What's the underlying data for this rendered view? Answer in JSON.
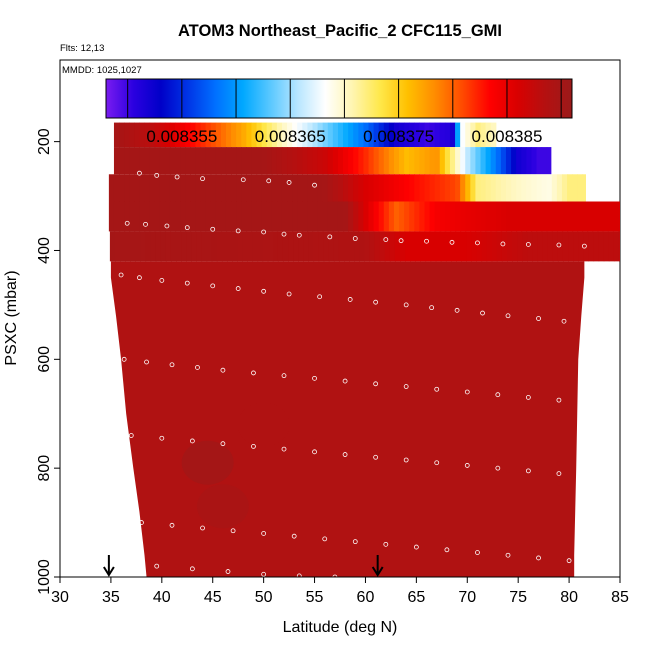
{
  "chart_data": {
    "type": "heatmap",
    "title": "ATOM3 Northeast_Pacific_2 CFC115_GMI",
    "flights_label": "Flts: 12,13",
    "dates_label": "MMDD: 1025,1027",
    "xlabel": "Latitude (deg N)",
    "ylabel": "PSXC (mbar)",
    "xlim": [
      30,
      85
    ],
    "ylim": [
      1000,
      50
    ],
    "x_ticks": [
      30,
      35,
      40,
      45,
      50,
      55,
      60,
      65,
      70,
      75,
      80,
      85
    ],
    "y_ticks": [
      200,
      400,
      600,
      800,
      1000
    ],
    "colorbar": {
      "range": [
        0.008348,
        0.008391
      ],
      "ticks": [
        0.008355,
        0.008365,
        0.008375,
        0.008385
      ],
      "tick_labels": [
        "0.008355",
        "0.008365",
        "0.008375",
        "0.008385"
      ],
      "colors": [
        "#7a1cf0",
        "#2b00e0",
        "#0000c8",
        "#0035e6",
        "#0070ff",
        "#00a8ff",
        "#5ac8ff",
        "#b8e6ff",
        "#ffffff",
        "#fff5b0",
        "#ffe84a",
        "#ffc000",
        "#ff8c00",
        "#ff4a00",
        "#ff0000",
        "#d90000",
        "#b51010",
        "#9b1a1a"
      ]
    },
    "background_value": 0.008389,
    "series": [
      {
        "name": "band-175",
        "p_top": 165,
        "p_bottom": 210,
        "x_start": 35.3,
        "x_end": 72.8,
        "gradient": [
          [
            35.3,
            0.00839
          ],
          [
            39,
            0.008388
          ],
          [
            44,
            0.008382
          ],
          [
            48,
            0.008377
          ],
          [
            52,
            0.00837
          ],
          [
            56,
            0.008364
          ],
          [
            60,
            0.008358
          ],
          [
            63,
            0.008352
          ],
          [
            66,
            0.00835
          ],
          [
            68.5,
            0.008351
          ],
          [
            69.5,
            0.008368
          ],
          [
            71,
            0.008372
          ],
          [
            72.8,
            0.00837
          ]
        ]
      },
      {
        "name": "band-228",
        "p_top": 210,
        "p_bottom": 260,
        "x_start": 35.3,
        "x_end": 78.2,
        "gradient": [
          [
            35.3,
            0.00839
          ],
          [
            50,
            0.00839
          ],
          [
            56,
            0.008387
          ],
          [
            60,
            0.008382
          ],
          [
            64,
            0.008376
          ],
          [
            67,
            0.008378
          ],
          [
            70,
            0.008366
          ],
          [
            73,
            0.008358
          ],
          [
            75,
            0.008352
          ],
          [
            77,
            0.00835
          ]
        ]
      },
      {
        "name": "band-288",
        "p_top": 260,
        "p_bottom": 310,
        "x_start": 34.8,
        "x_end": 81.6,
        "gradient": [
          [
            34.8,
            0.00839
          ],
          [
            56,
            0.00839
          ],
          [
            60,
            0.008386
          ],
          [
            65,
            0.008383
          ],
          [
            69,
            0.008381
          ],
          [
            71,
            0.008372
          ],
          [
            75,
            0.00837
          ],
          [
            78,
            0.008369
          ],
          [
            80,
            0.008372
          ]
        ]
      },
      {
        "name": "band-340",
        "p_top": 310,
        "p_bottom": 365,
        "x_start": 34.8,
        "x_end": 85.0,
        "gradient": [
          [
            34.8,
            0.00839
          ],
          [
            58,
            0.00839
          ],
          [
            61,
            0.008384
          ],
          [
            63,
            0.00838
          ],
          [
            65,
            0.008382
          ],
          [
            67,
            0.008384
          ],
          [
            70,
            0.008385
          ],
          [
            74,
            0.008386
          ],
          [
            80,
            0.008386
          ],
          [
            84,
            0.008386
          ]
        ]
      },
      {
        "name": "band-390",
        "p_top": 365,
        "p_bottom": 420,
        "x_start": 34.9,
        "x_end": 85.0,
        "gradient": [
          [
            34.9,
            0.00839
          ],
          [
            60,
            0.008389
          ],
          [
            64,
            0.008386
          ],
          [
            70,
            0.008386
          ],
          [
            76,
            0.008388
          ],
          [
            84,
            0.008388
          ]
        ]
      }
    ],
    "lower_lat_ranges": [
      {
        "p": 450,
        "x_start": 35.0,
        "x_end": 81.5
      },
      {
        "p": 520,
        "x_start": 35.5,
        "x_end": 81.2
      },
      {
        "p": 600,
        "x_start": 36.0,
        "x_end": 80.9
      },
      {
        "p": 700,
        "x_start": 36.5,
        "x_end": 80.8
      },
      {
        "p": 800,
        "x_start": 37.2,
        "x_end": 80.7
      },
      {
        "p": 880,
        "x_start": 37.8,
        "x_end": 80.6
      },
      {
        "p": 960,
        "x_start": 38.3,
        "x_end": 80.5
      },
      {
        "p": 1000,
        "x_start": 38.5,
        "x_end": 80.5
      }
    ],
    "hotspots": [
      {
        "x": 44.5,
        "p": 790,
        "value": 0.008391
      },
      {
        "x": 46,
        "p": 870,
        "value": 0.00839
      },
      {
        "x": 50,
        "p": 720,
        "value": 0.008389
      }
    ],
    "samples": [
      {
        "x": 37.8,
        "p": 258
      },
      {
        "x": 39.5,
        "p": 262
      },
      {
        "x": 41.5,
        "p": 265
      },
      {
        "x": 44.0,
        "p": 268
      },
      {
        "x": 48.0,
        "p": 270
      },
      {
        "x": 50.5,
        "p": 272
      },
      {
        "x": 52.5,
        "p": 275
      },
      {
        "x": 55.0,
        "p": 280
      },
      {
        "x": 36.6,
        "p": 350
      },
      {
        "x": 38.4,
        "p": 352
      },
      {
        "x": 40.5,
        "p": 355
      },
      {
        "x": 42.5,
        "p": 358
      },
      {
        "x": 45.0,
        "p": 361
      },
      {
        "x": 47.5,
        "p": 364
      },
      {
        "x": 50.0,
        "p": 366
      },
      {
        "x": 52.0,
        "p": 370
      },
      {
        "x": 53.5,
        "p": 372
      },
      {
        "x": 56.5,
        "p": 375
      },
      {
        "x": 59.0,
        "p": 378
      },
      {
        "x": 62.0,
        "p": 380
      },
      {
        "x": 63.5,
        "p": 382
      },
      {
        "x": 66.0,
        "p": 383
      },
      {
        "x": 68.5,
        "p": 385
      },
      {
        "x": 71.0,
        "p": 386
      },
      {
        "x": 73.5,
        "p": 388
      },
      {
        "x": 76.0,
        "p": 389
      },
      {
        "x": 79.0,
        "p": 390
      },
      {
        "x": 81.5,
        "p": 392
      },
      {
        "x": 36.0,
        "p": 445
      },
      {
        "x": 37.8,
        "p": 450
      },
      {
        "x": 40.0,
        "p": 455
      },
      {
        "x": 42.5,
        "p": 460
      },
      {
        "x": 45.0,
        "p": 465
      },
      {
        "x": 47.5,
        "p": 470
      },
      {
        "x": 50.0,
        "p": 475
      },
      {
        "x": 52.5,
        "p": 480
      },
      {
        "x": 55.5,
        "p": 485
      },
      {
        "x": 58.5,
        "p": 490
      },
      {
        "x": 61.0,
        "p": 495
      },
      {
        "x": 64.0,
        "p": 500
      },
      {
        "x": 66.5,
        "p": 505
      },
      {
        "x": 69.0,
        "p": 510
      },
      {
        "x": 71.5,
        "p": 515
      },
      {
        "x": 74.0,
        "p": 520
      },
      {
        "x": 77.0,
        "p": 525
      },
      {
        "x": 79.5,
        "p": 530
      },
      {
        "x": 36.3,
        "p": 600
      },
      {
        "x": 38.5,
        "p": 605
      },
      {
        "x": 41.0,
        "p": 610
      },
      {
        "x": 43.5,
        "p": 615
      },
      {
        "x": 46.0,
        "p": 620
      },
      {
        "x": 49.0,
        "p": 625
      },
      {
        "x": 52.0,
        "p": 630
      },
      {
        "x": 55.0,
        "p": 635
      },
      {
        "x": 58.0,
        "p": 640
      },
      {
        "x": 61.0,
        "p": 645
      },
      {
        "x": 64.0,
        "p": 650
      },
      {
        "x": 67.0,
        "p": 655
      },
      {
        "x": 70.0,
        "p": 660
      },
      {
        "x": 73.0,
        "p": 665
      },
      {
        "x": 76.0,
        "p": 670
      },
      {
        "x": 79.0,
        "p": 675
      },
      {
        "x": 37.0,
        "p": 740
      },
      {
        "x": 40.0,
        "p": 745
      },
      {
        "x": 43.0,
        "p": 750
      },
      {
        "x": 46.0,
        "p": 755
      },
      {
        "x": 49.0,
        "p": 760
      },
      {
        "x": 52.0,
        "p": 765
      },
      {
        "x": 55.0,
        "p": 770
      },
      {
        "x": 58.0,
        "p": 775
      },
      {
        "x": 61.0,
        "p": 780
      },
      {
        "x": 64.0,
        "p": 785
      },
      {
        "x": 67.0,
        "p": 790
      },
      {
        "x": 70.0,
        "p": 795
      },
      {
        "x": 73.0,
        "p": 800
      },
      {
        "x": 76.0,
        "p": 805
      },
      {
        "x": 79.0,
        "p": 810
      },
      {
        "x": 38.0,
        "p": 900
      },
      {
        "x": 41.0,
        "p": 905
      },
      {
        "x": 44.0,
        "p": 910
      },
      {
        "x": 47.0,
        "p": 915
      },
      {
        "x": 50.0,
        "p": 920
      },
      {
        "x": 53.0,
        "p": 925
      },
      {
        "x": 56.0,
        "p": 930
      },
      {
        "x": 59.0,
        "p": 935
      },
      {
        "x": 62.0,
        "p": 940
      },
      {
        "x": 65.0,
        "p": 945
      },
      {
        "x": 68.0,
        "p": 950
      },
      {
        "x": 71.0,
        "p": 955
      },
      {
        "x": 74.0,
        "p": 960
      },
      {
        "x": 77.0,
        "p": 965
      },
      {
        "x": 80.0,
        "p": 970
      },
      {
        "x": 39.5,
        "p": 980
      },
      {
        "x": 43.0,
        "p": 985
      },
      {
        "x": 46.5,
        "p": 990
      },
      {
        "x": 50.0,
        "p": 995
      },
      {
        "x": 53.5,
        "p": 998
      },
      {
        "x": 57.0,
        "p": 1000
      }
    ],
    "markers": [
      {
        "x": 34.8,
        "label": "arrow"
      },
      {
        "x": 61.2,
        "label": "arrow"
      }
    ]
  }
}
